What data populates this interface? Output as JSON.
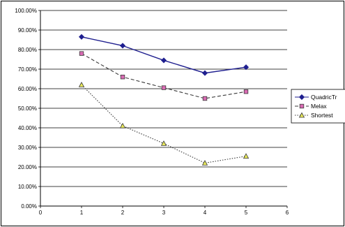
{
  "chart_data": {
    "type": "line",
    "title": "",
    "xlabel": "",
    "ylabel": "",
    "xlim": [
      0,
      6
    ],
    "ylim": [
      0,
      100
    ],
    "x_ticks": [
      "0",
      "1",
      "2",
      "3",
      "4",
      "5",
      "6"
    ],
    "y_ticks": [
      "0.00%",
      "10.00%",
      "20.00%",
      "30.00%",
      "40.00%",
      "50.00%",
      "60.00%",
      "70.00%",
      "80.00%",
      "90.00%",
      "100.00%"
    ],
    "grid": "horizontal",
    "legend_position": "right",
    "series": [
      {
        "name": "QuadricTr",
        "x": [
          1,
          2,
          3,
          4,
          5
        ],
        "values": [
          86.5,
          82.0,
          74.5,
          68.0,
          71.0
        ],
        "color": "#1f1f8f",
        "marker": "diamond",
        "line": "solid"
      },
      {
        "name": "Melax",
        "x": [
          1,
          2,
          3,
          4,
          5
        ],
        "values": [
          78.0,
          66.0,
          60.5,
          55.0,
          58.5
        ],
        "color": "#3a3a3a",
        "marker": "square",
        "marker_fill": "#d96bb3",
        "line": "dashed"
      },
      {
        "name": "Shortest",
        "x": [
          1,
          2,
          3,
          4,
          5
        ],
        "values": [
          62.0,
          41.0,
          32.0,
          22.0,
          25.5
        ],
        "color": "#3a3a3a",
        "marker": "triangle",
        "marker_fill": "#e8e85a",
        "line": "dotted"
      }
    ]
  }
}
